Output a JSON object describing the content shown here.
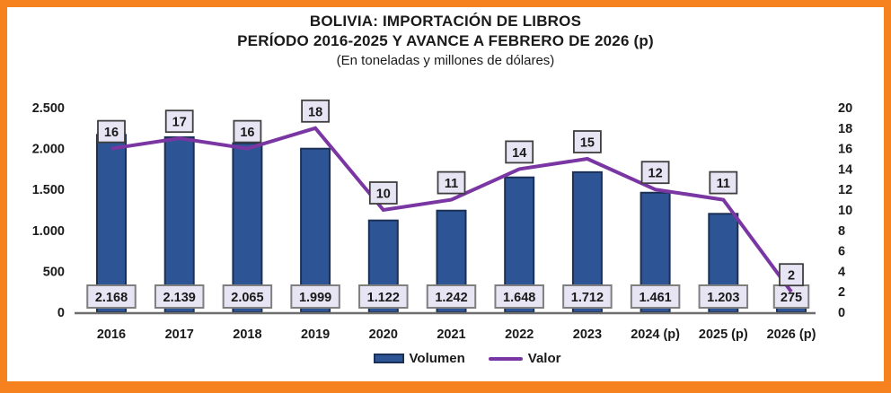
{
  "title": {
    "line1": "BOLIVIA: IMPORTACIÓN DE LIBROS",
    "line2": "PERÍODO 2016-2025 Y AVANCE A FEBRERO DE 2026 (p)",
    "subtitle": "(En toneladas y millones de dólares)"
  },
  "legend": {
    "volumen": "Volumen",
    "valor": "Valor"
  },
  "colors": {
    "frame": "#F6821F",
    "bar_fill": "#2D5596",
    "bar_border": "#1B3055",
    "line": "#7A36A3",
    "label_box_fill": "#E7E4F4",
    "label_box_border_dark": "#3F3F3F",
    "label_box_border_gray": "#7F7F7F",
    "axis_line": "#6E6E6E",
    "text": "#1A1A1A"
  },
  "chart_data": {
    "type": "bar+line combo",
    "title": "BOLIVIA: IMPORTACIÓN DE LIBROS PERÍODO 2016-2025 Y AVANCE A FEBRERO DE 2026 (p)",
    "subtitle": "(En toneladas y millones de dólares)",
    "categories": [
      "2016",
      "2017",
      "2018",
      "2019",
      "2020",
      "2021",
      "2022",
      "2023",
      "2024 (p)",
      "2025 (p)",
      "2026 (p)"
    ],
    "series": [
      {
        "name": "Volumen",
        "type": "bar",
        "axis": "left",
        "unit": "toneladas",
        "values": [
          2168,
          2139,
          2065,
          1999,
          1122,
          1242,
          1648,
          1712,
          1461,
          1203,
          275
        ],
        "labels": [
          "2.168",
          "2.139",
          "2.065",
          "1.999",
          "1.122",
          "1.242",
          "1.648",
          "1.712",
          "1.461",
          "1.203",
          "275"
        ]
      },
      {
        "name": "Valor",
        "type": "line",
        "axis": "right",
        "unit": "millones de dólares",
        "values": [
          16,
          17,
          16,
          18,
          10,
          11,
          14,
          15,
          12,
          11,
          2
        ],
        "labels": [
          "16",
          "17",
          "16",
          "18",
          "10",
          "11",
          "14",
          "15",
          "12",
          "11",
          "2"
        ]
      }
    ],
    "left_axis": {
      "min": 0,
      "max": 2500,
      "ticks": [
        "0",
        "500",
        "1.000",
        "1.500",
        "2.000",
        "2.500"
      ]
    },
    "right_axis": {
      "min": 0,
      "max": 20,
      "ticks": [
        "0",
        "2",
        "4",
        "6",
        "8",
        "10",
        "12",
        "14",
        "16",
        "18",
        "20"
      ]
    },
    "grid": false,
    "legend_position": "bottom"
  }
}
